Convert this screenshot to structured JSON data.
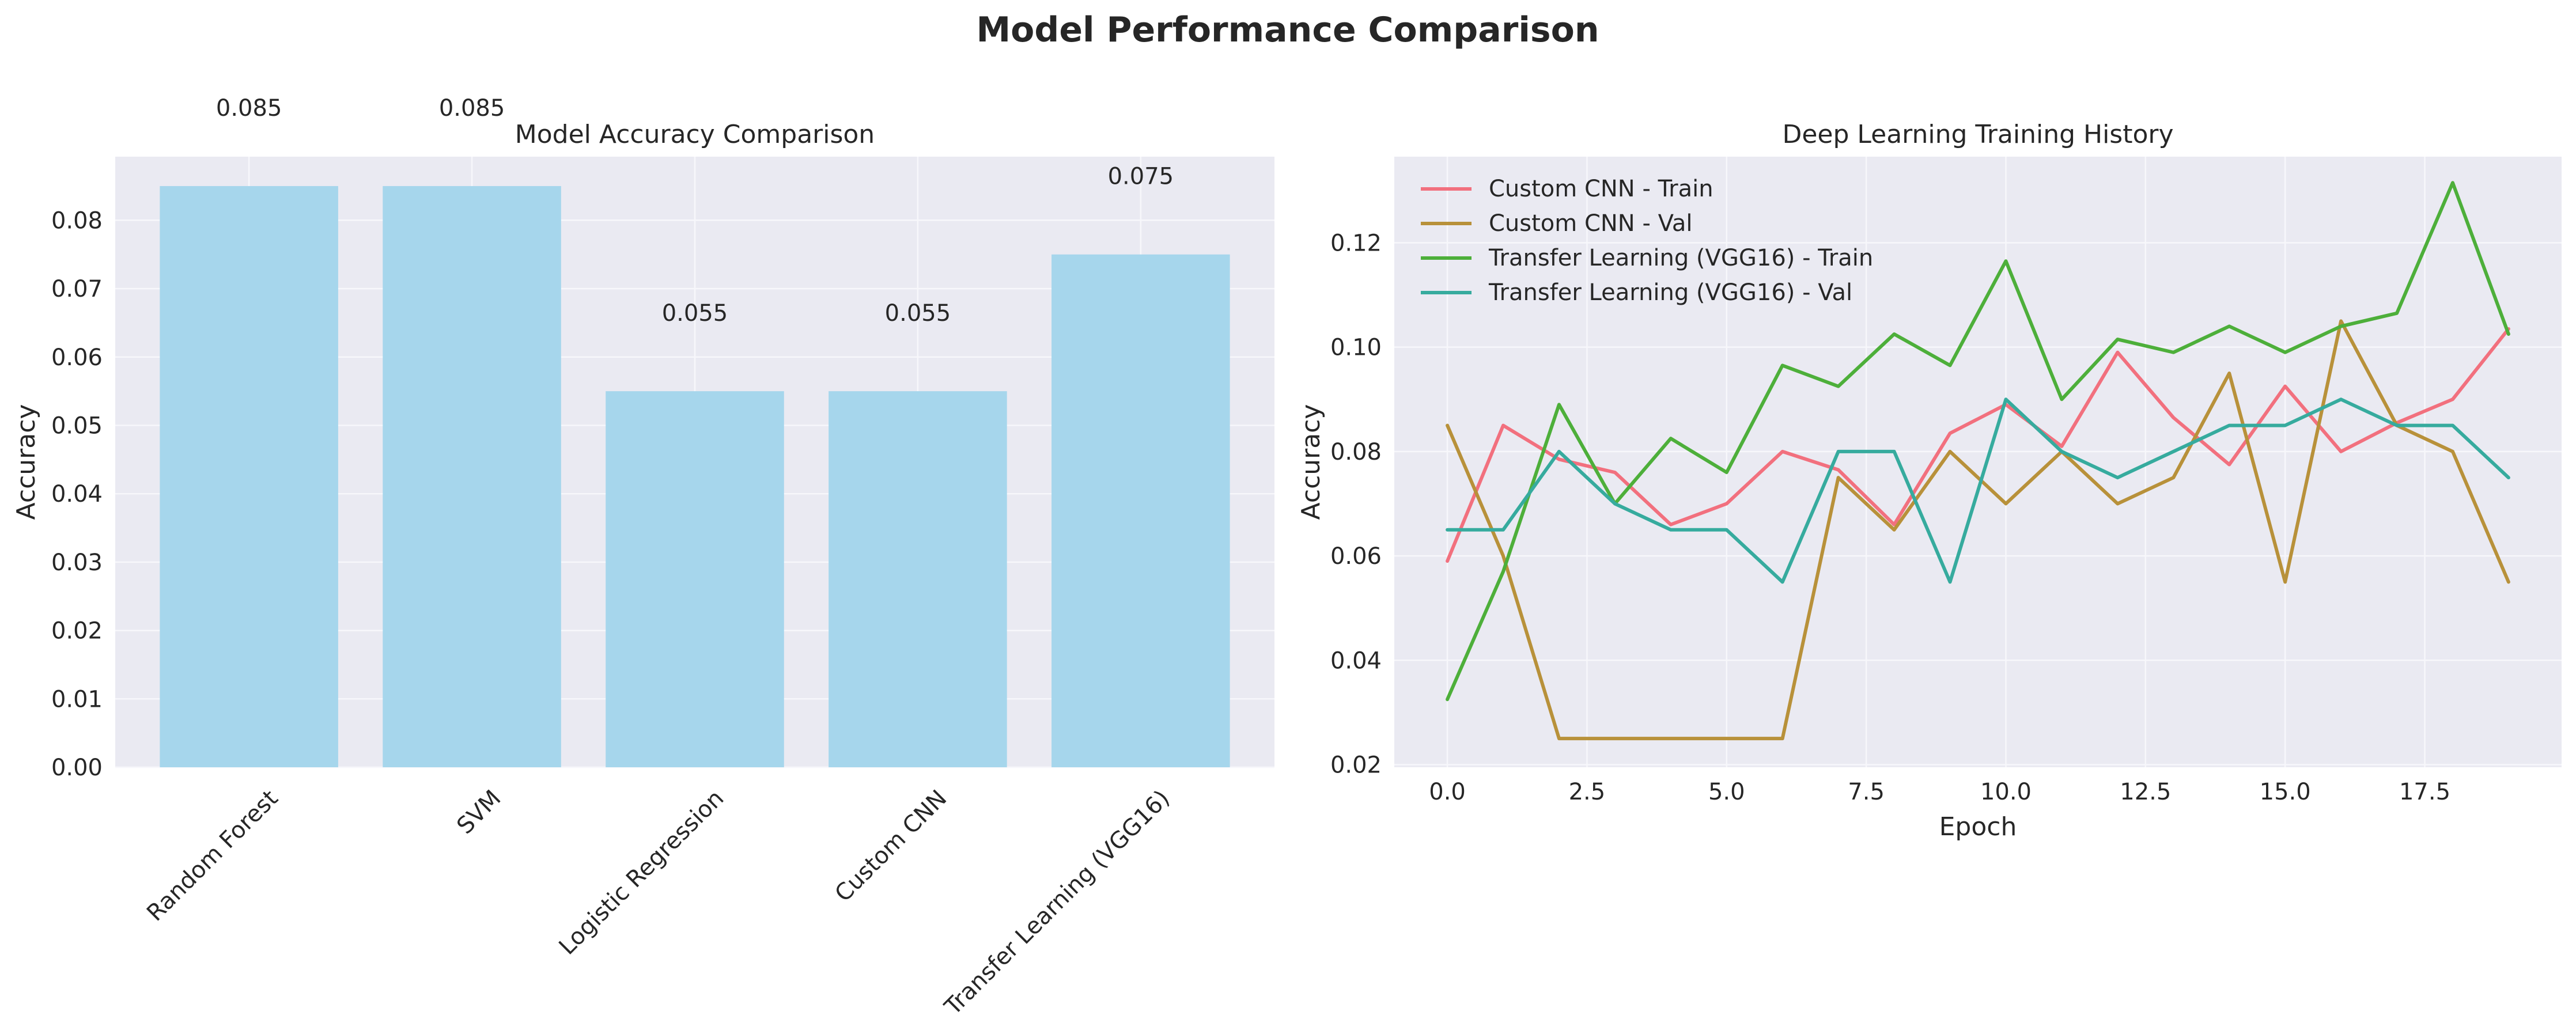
{
  "figure_title": "Model Performance Comparison",
  "colors": {
    "panel_bg": "#eaeaf2",
    "grid": "#f7f7fb",
    "bar": "#a6d6ec",
    "text": "#262626"
  },
  "chart_data": [
    {
      "type": "bar",
      "title": "Model Accuracy Comparison",
      "xlabel": "",
      "ylabel": "Accuracy",
      "categories": [
        "Random Forest",
        "SVM",
        "Logistic Regression",
        "Custom CNN",
        "Transfer Learning (VGG16)"
      ],
      "values": [
        0.085,
        0.085,
        0.055,
        0.055,
        0.075
      ],
      "value_labels": [
        "0.085",
        "0.085",
        "0.055",
        "0.055",
        "0.075"
      ],
      "ylim": [
        0,
        0.0893
      ],
      "yticks": [
        0.0,
        0.01,
        0.02,
        0.03,
        0.04,
        0.05,
        0.06,
        0.07,
        0.08
      ],
      "ytick_labels": [
        "0.00",
        "0.01",
        "0.02",
        "0.03",
        "0.04",
        "0.05",
        "0.06",
        "0.07",
        "0.08"
      ],
      "xtick_rotation_deg": 45,
      "grid": true
    },
    {
      "type": "line",
      "title": "Deep Learning Training History",
      "xlabel": "Epoch",
      "ylabel": "Accuracy",
      "x": [
        0,
        1,
        2,
        3,
        4,
        5,
        6,
        7,
        8,
        9,
        10,
        11,
        12,
        13,
        14,
        15,
        16,
        17,
        18,
        19
      ],
      "xlim": [
        -0.95,
        19.95
      ],
      "ylim": [
        0.0195,
        0.1365
      ],
      "xticks": [
        0.0,
        2.5,
        5.0,
        7.5,
        10.0,
        12.5,
        15.0,
        17.5
      ],
      "xtick_labels": [
        "0.0",
        "2.5",
        "5.0",
        "7.5",
        "10.0",
        "12.5",
        "15.0",
        "17.5"
      ],
      "yticks": [
        0.02,
        0.04,
        0.06,
        0.08,
        0.1,
        0.12
      ],
      "ytick_labels": [
        "0.02",
        "0.04",
        "0.06",
        "0.08",
        "0.10",
        "0.12"
      ],
      "grid": true,
      "legend_position": "top-left",
      "series": [
        {
          "name": "Custom CNN - Train",
          "color": "#f2707e",
          "values": [
            0.059,
            0.085,
            0.0785,
            0.076,
            0.066,
            0.07,
            0.08,
            0.0765,
            0.066,
            0.0835,
            0.089,
            0.081,
            0.099,
            0.0865,
            0.0775,
            0.0925,
            0.08,
            0.0855,
            0.09,
            0.1035
          ]
        },
        {
          "name": "Custom CNN - Val",
          "color": "#b8913a",
          "values": [
            0.085,
            0.06,
            0.025,
            0.025,
            0.025,
            0.025,
            0.025,
            0.075,
            0.065,
            0.08,
            0.07,
            0.08,
            0.07,
            0.075,
            0.095,
            0.055,
            0.105,
            0.085,
            0.08,
            0.055
          ]
        },
        {
          "name": "Transfer Learning (VGG16) - Train",
          "color": "#4daf3a",
          "values": [
            0.0325,
            0.057,
            0.089,
            0.07,
            0.0825,
            0.076,
            0.0965,
            0.0925,
            0.1025,
            0.0965,
            0.1165,
            0.09,
            0.1015,
            0.099,
            0.104,
            0.099,
            0.104,
            0.1065,
            0.1315,
            0.1025
          ]
        },
        {
          "name": "Transfer Learning (VGG16) - Val",
          "color": "#36ab9e",
          "values": [
            0.065,
            0.065,
            0.08,
            0.07,
            0.065,
            0.065,
            0.055,
            0.08,
            0.08,
            0.055,
            0.09,
            0.08,
            0.075,
            0.08,
            0.085,
            0.085,
            0.09,
            0.085,
            0.085,
            0.075
          ]
        }
      ]
    }
  ]
}
